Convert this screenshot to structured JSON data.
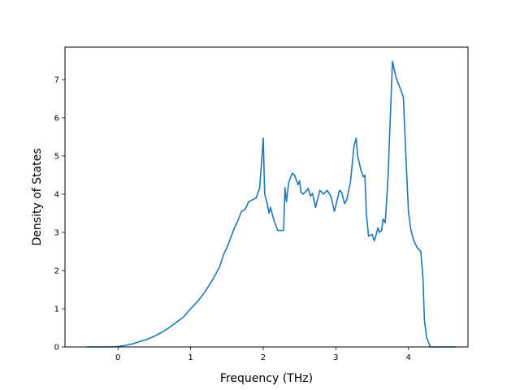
{
  "chart_data": {
    "type": "line",
    "title": "",
    "xlabel": "Frequency (THz)",
    "ylabel": "Density of States",
    "xlim": [
      -0.73,
      4.82
    ],
    "ylim": [
      0,
      7.85
    ],
    "xticks": [
      0,
      1,
      2,
      3,
      4
    ],
    "yticks": [
      0,
      1,
      2,
      3,
      4,
      5,
      6,
      7
    ],
    "grid": false,
    "legend": "none",
    "series": [
      {
        "color": "#1f77b4",
        "x": [
          -0.43,
          -0.1,
          0.0,
          0.1,
          0.2,
          0.3,
          0.4,
          0.5,
          0.6,
          0.7,
          0.8,
          0.9,
          1.0,
          1.1,
          1.2,
          1.3,
          1.4,
          1.45,
          1.5,
          1.55,
          1.6,
          1.65,
          1.7,
          1.75,
          1.8,
          1.85,
          1.9,
          1.95,
          1.98,
          2.0,
          2.02,
          2.05,
          2.08,
          2.1,
          2.15,
          2.2,
          2.25,
          2.28,
          2.3,
          2.32,
          2.35,
          2.4,
          2.43,
          2.48,
          2.5,
          2.52,
          2.55,
          2.6,
          2.62,
          2.65,
          2.68,
          2.72,
          2.78,
          2.83,
          2.88,
          2.93,
          2.98,
          3.0,
          3.05,
          3.08,
          3.12,
          3.15,
          3.2,
          3.25,
          3.28,
          3.3,
          3.35,
          3.38,
          3.4,
          3.42,
          3.45,
          3.5,
          3.53,
          3.55,
          3.58,
          3.6,
          3.63,
          3.65,
          3.68,
          3.7,
          3.72,
          3.75,
          3.78,
          3.8,
          3.83,
          3.88,
          3.93,
          3.96,
          4.0,
          4.03,
          4.07,
          4.12,
          4.17,
          4.2,
          4.22,
          4.25,
          4.3,
          4.5,
          4.65
        ],
        "y": [
          0,
          0,
          0.01,
          0.04,
          0.08,
          0.14,
          0.2,
          0.28,
          0.38,
          0.5,
          0.64,
          0.78,
          1.0,
          1.2,
          1.45,
          1.75,
          2.1,
          2.4,
          2.6,
          2.85,
          3.1,
          3.3,
          3.55,
          3.6,
          3.8,
          3.85,
          3.9,
          4.15,
          4.9,
          5.47,
          4.0,
          3.8,
          3.5,
          3.65,
          3.3,
          3.05,
          3.05,
          3.05,
          4.17,
          3.8,
          4.3,
          4.55,
          4.5,
          4.25,
          4.35,
          4.05,
          4.0,
          4.1,
          4.15,
          3.95,
          4.02,
          3.65,
          4.1,
          4.0,
          4.1,
          3.95,
          3.55,
          3.7,
          4.1,
          4.05,
          3.75,
          3.85,
          4.3,
          5.25,
          5.47,
          5.0,
          4.6,
          4.45,
          4.5,
          3.5,
          2.9,
          2.95,
          2.78,
          2.9,
          3.12,
          3.0,
          3.05,
          3.35,
          3.25,
          3.85,
          4.5,
          6.0,
          7.48,
          7.3,
          7.05,
          6.8,
          6.55,
          5.2,
          3.55,
          3.1,
          2.8,
          2.6,
          2.5,
          1.8,
          0.7,
          0.25,
          0,
          0,
          0
        ]
      }
    ]
  }
}
